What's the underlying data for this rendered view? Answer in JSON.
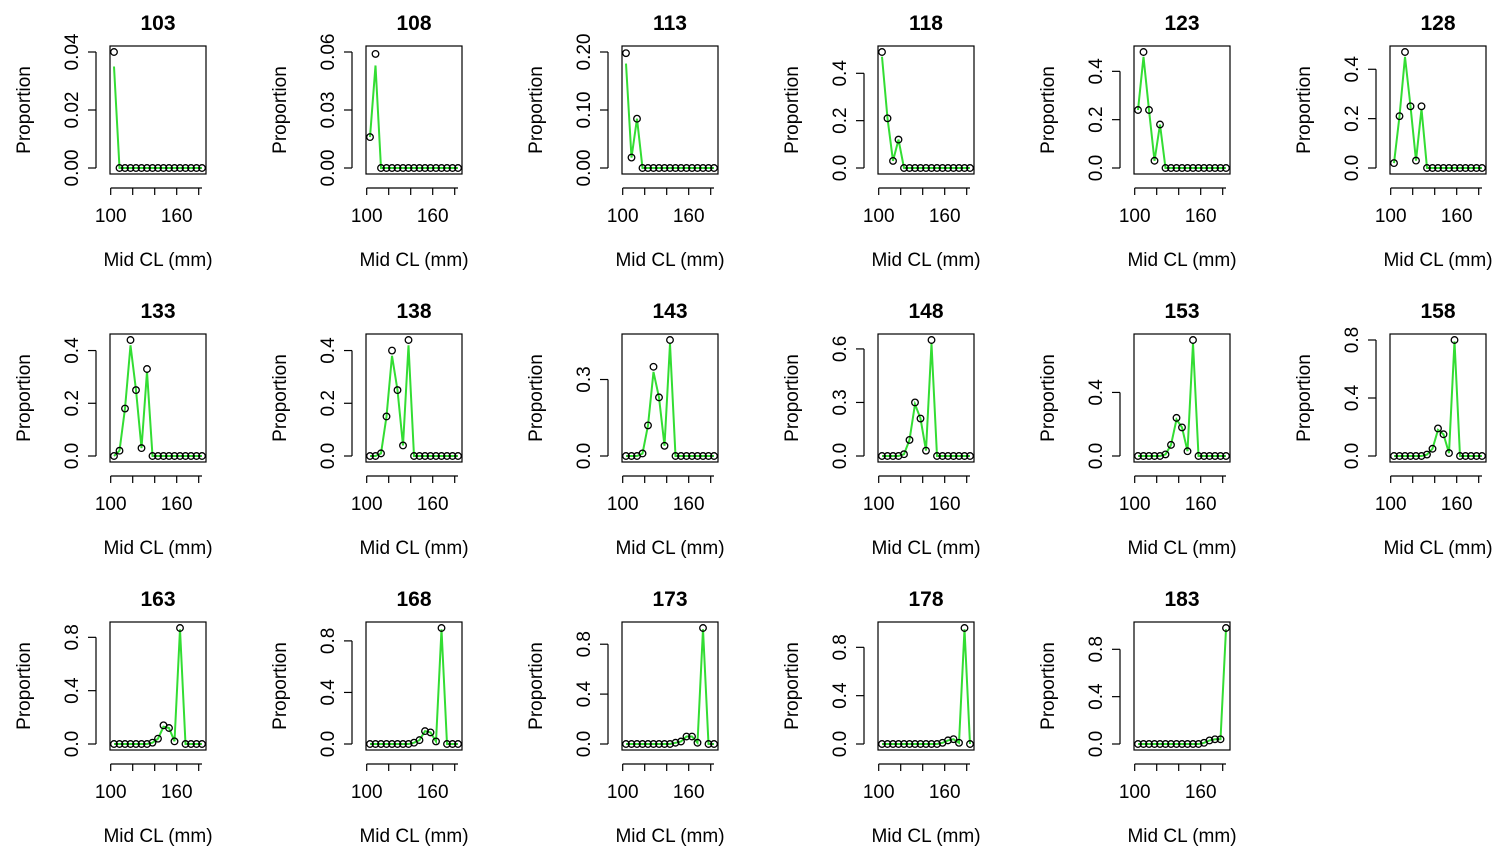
{
  "chart_data": {
    "type": "line",
    "layout": "small-multiples",
    "x": [
      103,
      108,
      113,
      118,
      123,
      128,
      133,
      138,
      143,
      148,
      153,
      158,
      163,
      168,
      173,
      178,
      183
    ],
    "xlabel": "Mid CL (mm)",
    "ylabel": "Proportion",
    "xlim": [
      103,
      183
    ],
    "xticks": [
      100,
      160
    ],
    "colors": {
      "fitted": "#33dd33",
      "observed": "#000000"
    },
    "panels": [
      {
        "title": "103",
        "ylim": [
          0,
          0.04
        ],
        "yticks": [
          "0.00",
          "0.02",
          "0.04"
        ],
        "observed": [
          0.04,
          0,
          0,
          0,
          0,
          0,
          0,
          0,
          0,
          0,
          0,
          0,
          0,
          0,
          0,
          0,
          0
        ],
        "fitted": [
          0.035,
          0,
          0,
          0,
          0,
          0,
          0,
          0,
          0,
          0,
          0,
          0,
          0,
          0,
          0,
          0,
          0
        ]
      },
      {
        "title": "108",
        "ylim": [
          0,
          0.06
        ],
        "yticks": [
          "0.00",
          "0.03",
          "0.06"
        ],
        "observed": [
          0.016,
          0.059,
          0,
          0,
          0,
          0,
          0,
          0,
          0,
          0,
          0,
          0,
          0,
          0,
          0,
          0,
          0
        ],
        "fitted": [
          0.016,
          0.053,
          0,
          0,
          0,
          0,
          0,
          0,
          0,
          0,
          0,
          0,
          0,
          0,
          0,
          0,
          0
        ]
      },
      {
        "title": "113",
        "ylim": [
          0,
          0.2
        ],
        "yticks": [
          "0.00",
          "0.10",
          "0.20"
        ],
        "observed": [
          0.198,
          0.018,
          0.085,
          0,
          0,
          0,
          0,
          0,
          0,
          0,
          0,
          0,
          0,
          0,
          0,
          0,
          0
        ],
        "fitted": [
          0.18,
          0.018,
          0.085,
          0,
          0,
          0,
          0,
          0,
          0,
          0,
          0,
          0,
          0,
          0,
          0,
          0,
          0
        ]
      },
      {
        "title": "118",
        "ylim": [
          0,
          0.49
        ],
        "yticks": [
          "0.0",
          "0.2",
          "0.4"
        ],
        "observed": [
          0.49,
          0.21,
          0.03,
          0.12,
          0,
          0,
          0,
          0,
          0,
          0,
          0,
          0,
          0,
          0,
          0,
          0,
          0
        ],
        "fitted": [
          0.47,
          0.21,
          0.03,
          0.12,
          0,
          0,
          0,
          0,
          0,
          0,
          0,
          0,
          0,
          0,
          0,
          0,
          0
        ]
      },
      {
        "title": "123",
        "ylim": [
          0,
          0.48
        ],
        "yticks": [
          "0.0",
          "0.2",
          "0.4"
        ],
        "observed": [
          0.24,
          0.48,
          0.24,
          0.03,
          0.18,
          0,
          0,
          0,
          0,
          0,
          0,
          0,
          0,
          0,
          0,
          0,
          0
        ],
        "fitted": [
          0.24,
          0.46,
          0.24,
          0.03,
          0.18,
          0,
          0,
          0,
          0,
          0,
          0,
          0,
          0,
          0,
          0,
          0,
          0
        ]
      },
      {
        "title": "128",
        "ylim": [
          0,
          0.47
        ],
        "yticks": [
          "0.0",
          "0.2",
          "0.4"
        ],
        "observed": [
          0.02,
          0.21,
          0.47,
          0.25,
          0.03,
          0.25,
          0,
          0,
          0,
          0,
          0,
          0,
          0,
          0,
          0,
          0,
          0
        ],
        "fitted": [
          0.02,
          0.21,
          0.45,
          0.25,
          0.03,
          0.24,
          0,
          0,
          0,
          0,
          0,
          0,
          0,
          0,
          0,
          0,
          0
        ]
      },
      {
        "title": "133",
        "ylim": [
          0,
          0.44
        ],
        "yticks": [
          "0.0",
          "0.2",
          "0.4"
        ],
        "observed": [
          0,
          0.02,
          0.18,
          0.44,
          0.25,
          0.03,
          0.33,
          0,
          0,
          0,
          0,
          0,
          0,
          0,
          0,
          0,
          0
        ],
        "fitted": [
          0,
          0.02,
          0.18,
          0.42,
          0.25,
          0.03,
          0.32,
          0,
          0,
          0,
          0,
          0,
          0,
          0,
          0,
          0,
          0
        ]
      },
      {
        "title": "138",
        "ylim": [
          0,
          0.44
        ],
        "yticks": [
          "0.0",
          "0.2",
          "0.4"
        ],
        "observed": [
          0,
          0,
          0.01,
          0.15,
          0.4,
          0.25,
          0.04,
          0.44,
          0,
          0,
          0,
          0,
          0,
          0,
          0,
          0,
          0
        ],
        "fitted": [
          0,
          0,
          0.01,
          0.15,
          0.38,
          0.25,
          0.04,
          0.42,
          0,
          0,
          0,
          0,
          0,
          0,
          0,
          0,
          0
        ]
      },
      {
        "title": "143",
        "ylim": [
          0,
          0.455
        ],
        "yticks": [
          "0.0",
          "0.3"
        ],
        "observed": [
          0,
          0,
          0,
          0.01,
          0.12,
          0.35,
          0.23,
          0.04,
          0.455,
          0,
          0,
          0,
          0,
          0,
          0,
          0,
          0
        ],
        "fitted": [
          0,
          0,
          0,
          0.01,
          0.12,
          0.33,
          0.23,
          0.04,
          0.44,
          0,
          0,
          0,
          0,
          0,
          0,
          0,
          0
        ]
      },
      {
        "title": "148",
        "ylim": [
          0,
          0.65
        ],
        "yticks": [
          "0.0",
          "0.3",
          "0.6"
        ],
        "observed": [
          0,
          0,
          0,
          0,
          0.01,
          0.09,
          0.3,
          0.21,
          0.03,
          0.65,
          0,
          0,
          0,
          0,
          0,
          0,
          0
        ],
        "fitted": [
          0,
          0,
          0,
          0,
          0.01,
          0.09,
          0.29,
          0.21,
          0.03,
          0.63,
          0,
          0,
          0,
          0,
          0,
          0,
          0
        ]
      },
      {
        "title": "153",
        "ylim": [
          0,
          0.73
        ],
        "yticks": [
          "0.0",
          "0.4"
        ],
        "observed": [
          0,
          0,
          0,
          0,
          0,
          0.01,
          0.07,
          0.24,
          0.18,
          0.03,
          0.73,
          0,
          0,
          0,
          0,
          0,
          0
        ],
        "fitted": [
          0,
          0,
          0,
          0,
          0,
          0.01,
          0.07,
          0.23,
          0.18,
          0.03,
          0.71,
          0,
          0,
          0,
          0,
          0,
          0
        ]
      },
      {
        "title": "158",
        "ylim": [
          0,
          0.8
        ],
        "yticks": [
          "0.0",
          "0.4",
          "0.8"
        ],
        "observed": [
          0,
          0,
          0,
          0,
          0,
          0,
          0.01,
          0.05,
          0.19,
          0.15,
          0.02,
          0.8,
          0,
          0,
          0,
          0,
          0
        ],
        "fitted": [
          0,
          0,
          0,
          0,
          0,
          0,
          0.01,
          0.05,
          0.18,
          0.15,
          0.02,
          0.79,
          0,
          0,
          0,
          0,
          0
        ]
      },
      {
        "title": "163",
        "ylim": [
          0,
          0.87
        ],
        "yticks": [
          "0.0",
          "0.4",
          "0.8"
        ],
        "observed": [
          0,
          0,
          0,
          0,
          0,
          0,
          0,
          0.01,
          0.04,
          0.14,
          0.12,
          0.02,
          0.87,
          0,
          0,
          0,
          0
        ],
        "fitted": [
          0,
          0,
          0,
          0,
          0,
          0,
          0,
          0.01,
          0.04,
          0.13,
          0.12,
          0.02,
          0.86,
          0,
          0,
          0,
          0
        ]
      },
      {
        "title": "168",
        "ylim": [
          0,
          0.9
        ],
        "yticks": [
          "0.0",
          "0.4",
          "0.8"
        ],
        "observed": [
          0,
          0,
          0,
          0,
          0,
          0,
          0,
          0,
          0.01,
          0.03,
          0.1,
          0.09,
          0.02,
          0.9,
          0,
          0,
          0
        ],
        "fitted": [
          0,
          0,
          0,
          0,
          0,
          0,
          0,
          0,
          0.01,
          0.03,
          0.1,
          0.09,
          0.02,
          0.89,
          0,
          0,
          0
        ]
      },
      {
        "title": "173",
        "ylim": [
          0,
          0.93
        ],
        "yticks": [
          "0.0",
          "0.4",
          "0.8"
        ],
        "observed": [
          0,
          0,
          0,
          0,
          0,
          0,
          0,
          0,
          0,
          0.01,
          0.02,
          0.06,
          0.06,
          0.01,
          0.93,
          0,
          0
        ],
        "fitted": [
          0,
          0,
          0,
          0,
          0,
          0,
          0,
          0,
          0,
          0.01,
          0.02,
          0.06,
          0.06,
          0.01,
          0.92,
          0,
          0
        ]
      },
      {
        "title": "178",
        "ylim": [
          0,
          0.96
        ],
        "yticks": [
          "0.0",
          "0.4",
          "0.8"
        ],
        "observed": [
          0,
          0,
          0,
          0,
          0,
          0,
          0,
          0,
          0,
          0,
          0,
          0.01,
          0.03,
          0.04,
          0.01,
          0.96,
          0
        ],
        "fitted": [
          0,
          0,
          0,
          0,
          0,
          0,
          0,
          0,
          0,
          0,
          0,
          0.01,
          0.03,
          0.04,
          0.01,
          0.95,
          0
        ]
      },
      {
        "title": "183",
        "ylim": [
          0,
          0.98
        ],
        "yticks": [
          "0.0",
          "0.4",
          "0.8"
        ],
        "observed": [
          0,
          0,
          0,
          0,
          0,
          0,
          0,
          0,
          0,
          0,
          0,
          0,
          0.01,
          0.03,
          0.04,
          0.04,
          0.98
        ],
        "fitted": [
          0,
          0,
          0,
          0,
          0,
          0,
          0,
          0,
          0,
          0,
          0,
          0,
          0.01,
          0.03,
          0.04,
          0.04,
          0.97
        ]
      }
    ]
  }
}
